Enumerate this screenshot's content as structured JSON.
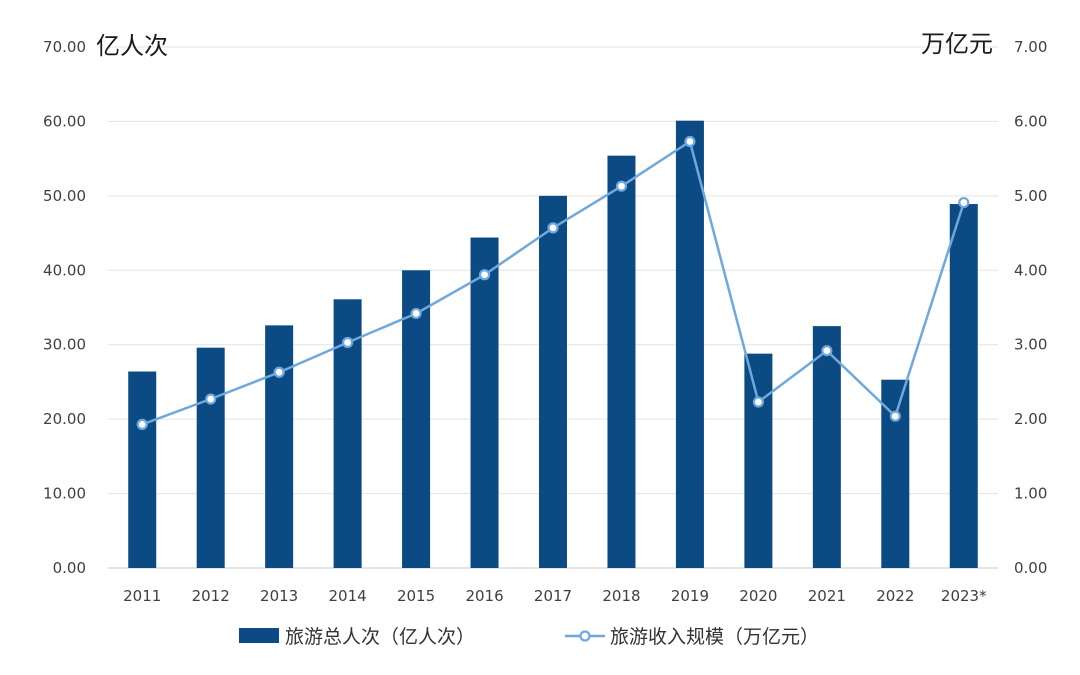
{
  "chart_data": {
    "type": "bar",
    "categories": [
      "2011",
      "2012",
      "2013",
      "2014",
      "2015",
      "2016",
      "2017",
      "2018",
      "2019",
      "2020",
      "2021",
      "2022",
      "2023*"
    ],
    "series": [
      {
        "name": "旅游总人次（亿人次）",
        "type": "bar",
        "axis": "left",
        "color": "#0B4A83",
        "values": [
          26.4,
          29.6,
          32.6,
          36.1,
          40.0,
          44.4,
          50.0,
          55.4,
          60.1,
          28.8,
          32.5,
          25.3,
          48.9
        ]
      },
      {
        "name": "旅游收入规模（万亿元）",
        "type": "line",
        "axis": "right",
        "color": "#6FA8DC",
        "values": [
          1.93,
          2.27,
          2.63,
          3.03,
          3.42,
          3.94,
          4.57,
          5.13,
          5.73,
          2.23,
          2.92,
          2.04,
          4.91
        ]
      }
    ],
    "y_left": {
      "unit": "亿人次",
      "ylim": [
        0,
        70
      ],
      "ticks": [
        "0.00",
        "10.00",
        "20.00",
        "30.00",
        "40.00",
        "50.00",
        "60.00",
        "70.00"
      ]
    },
    "y_right": {
      "unit": "万亿元",
      "ylim": [
        0,
        7
      ],
      "ticks": [
        "0.00",
        "1.00",
        "2.00",
        "3.00",
        "4.00",
        "5.00",
        "6.00",
        "7.00"
      ]
    },
    "grid": true,
    "legend_position": "bottom"
  }
}
